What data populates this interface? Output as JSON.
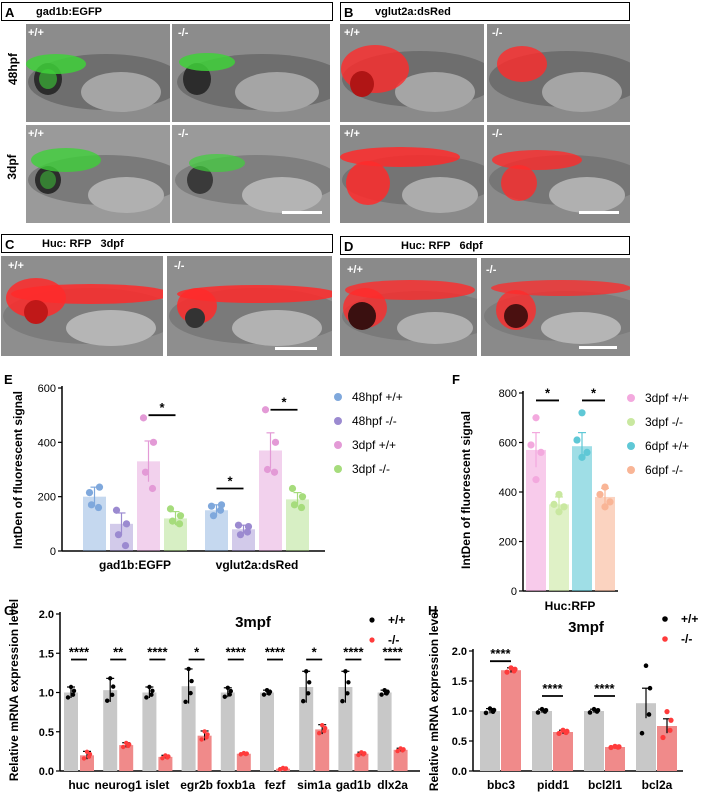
{
  "panels": {
    "A": {
      "letter": "A",
      "title": "gad1b:EGFP"
    },
    "B": {
      "letter": "B",
      "title": "vglut2a:dsRed"
    },
    "C": {
      "letter": "C",
      "title": "Huc: RFP   3dpf"
    },
    "D": {
      "letter": "D",
      "title": "Huc: RFP   6dpf"
    },
    "E": {
      "letter": "E"
    },
    "F": {
      "letter": "F"
    },
    "G": {
      "letter": "G"
    },
    "H": {
      "letter": "H"
    }
  },
  "rows": {
    "r1": "48hpf",
    "r2": "3dpf"
  },
  "genotypes": {
    "wt": "+/+",
    "ko": "-/-"
  },
  "colors": {
    "egfp": "#3fd13a",
    "dsred": "#ff2a2a",
    "bar_wt": "#c8c8c8",
    "bar_ko": "#f08a8a",
    "dot_ko": "#ff3b3b"
  },
  "chart_data": [
    {
      "id": "E",
      "type": "bar",
      "ylabel": "IntDen of fluorescent signal",
      "ylim": [
        0,
        600
      ],
      "yticks": [
        0,
        200,
        400,
        600
      ],
      "categories": [
        "gad1b:EGFP",
        "vglut2a:dsRed"
      ],
      "series": [
        {
          "name": "48hpf +/+",
          "color": "#7fa8dc",
          "values": [
            200,
            150
          ],
          "errors": [
            35,
            20
          ],
          "points": [
            [
              215,
              235,
              170,
              160
            ],
            [
              165,
              170,
              130,
              150
            ]
          ]
        },
        {
          "name": "48hpf -/-",
          "color": "#9b8ad0",
          "values": [
            100,
            80
          ],
          "errors": [
            40,
            15
          ],
          "points": [
            [
              150,
              100,
              60,
              20
            ],
            [
              95,
              90,
              60,
              70
            ]
          ]
        },
        {
          "name": "3dpf +/+",
          "color": "#e39ad6",
          "values": [
            330,
            370
          ],
          "errors": [
            75,
            65
          ],
          "points": [
            [
              490,
              400,
              290,
              230
            ],
            [
              520,
              400,
              300,
              290
            ]
          ]
        },
        {
          "name": "3dpf -/-",
          "color": "#a6dc7c",
          "values": [
            120,
            190
          ],
          "errors": [
            25,
            25
          ],
          "points": [
            [
              155,
              130,
              110,
              100
            ],
            [
              230,
              200,
              170,
              160
            ]
          ]
        }
      ],
      "significance": [
        {
          "category": "gad1b:EGFP",
          "from": "3dpf +/+",
          "to": "3dpf -/-",
          "label": "*",
          "y": 500
        },
        {
          "category": "vglut2a:dsRed",
          "from": "48hpf +/+",
          "to": "48hpf -/-",
          "label": "*",
          "y": 230
        },
        {
          "category": "vglut2a:dsRed",
          "from": "3dpf +/+",
          "to": "3dpf -/-",
          "label": "*",
          "y": 520
        }
      ]
    },
    {
      "id": "F",
      "type": "bar",
      "ylabel": "IntDen of fluorescent signal",
      "xlabel": "Huc:RFP",
      "ylim": [
        0,
        800
      ],
      "yticks": [
        0,
        200,
        400,
        600,
        800
      ],
      "categories": [
        "3dpf +/+",
        "3dpf -/-",
        "6dpf +/+",
        "6dpf -/-"
      ],
      "colors": [
        "#f3a9de",
        "#c9e8a0",
        "#5fc8d6",
        "#f9b596"
      ],
      "values": [
        570,
        350,
        585,
        380
      ],
      "errors": [
        70,
        30,
        55,
        35
      ],
      "points": [
        [
          700,
          590,
          560,
          450
        ],
        [
          390,
          350,
          340,
          320
        ],
        [
          720,
          610,
          560,
          540
        ],
        [
          420,
          390,
          360,
          340
        ]
      ],
      "significance": [
        {
          "from": "3dpf +/+",
          "to": "3dpf -/-",
          "label": "*",
          "y": 770
        },
        {
          "from": "6dpf +/+",
          "to": "6dpf -/-",
          "label": "*",
          "y": 770
        }
      ]
    },
    {
      "id": "G",
      "type": "bar",
      "title": "3mpf",
      "ylabel": "Relative mRNA expression level",
      "ylim": [
        0,
        2.0
      ],
      "yticks": [
        0.0,
        0.5,
        1.0,
        1.5,
        2.0
      ],
      "categories": [
        "huc",
        "neurog1",
        "islet",
        "egr2b",
        "foxb1a",
        "fezf",
        "sim1a",
        "gad1b",
        "dlx2a"
      ],
      "series": [
        {
          "name": "+/+",
          "values": [
            1.0,
            1.03,
            1.0,
            1.08,
            1.0,
            1.0,
            1.07,
            1.07,
            1.0
          ],
          "errors": [
            0.07,
            0.15,
            0.07,
            0.22,
            0.06,
            0.03,
            0.2,
            0.2,
            0.03
          ]
        },
        {
          "name": "-/-",
          "values": [
            0.2,
            0.33,
            0.18,
            0.45,
            0.22,
            0.03,
            0.53,
            0.22,
            0.27
          ],
          "errors": [
            0.05,
            0.03,
            0.02,
            0.06,
            0.01,
            0.01,
            0.06,
            0.02,
            0.02
          ]
        }
      ],
      "significance": [
        "****",
        "**",
        "****",
        "*",
        "****",
        "****",
        "*",
        "****",
        "****"
      ],
      "legend": [
        {
          "label": "+/+"
        },
        {
          "label": "-/-"
        }
      ]
    },
    {
      "id": "H",
      "type": "bar",
      "title": "3mpf",
      "ylabel": "Relative mRNA expression level",
      "ylim": [
        0,
        2.0
      ],
      "yticks": [
        0.0,
        0.5,
        1.0,
        1.5,
        2.0
      ],
      "categories": [
        "bbc3",
        "pidd1",
        "bcl2l1",
        "bcl2a"
      ],
      "series": [
        {
          "name": "+/+",
          "values": [
            1.0,
            1.0,
            1.0,
            1.13
          ],
          "errors": [
            0.04,
            0.03,
            0.03,
            0.25
          ]
        },
        {
          "name": "-/-",
          "values": [
            1.68,
            0.65,
            0.4,
            0.75
          ],
          "errors": [
            0.04,
            0.03,
            0.01,
            0.12
          ]
        }
      ],
      "significance": [
        "****",
        "****",
        "****",
        ""
      ],
      "legend": [
        {
          "label": "+/+"
        },
        {
          "label": "-/-"
        }
      ]
    }
  ]
}
